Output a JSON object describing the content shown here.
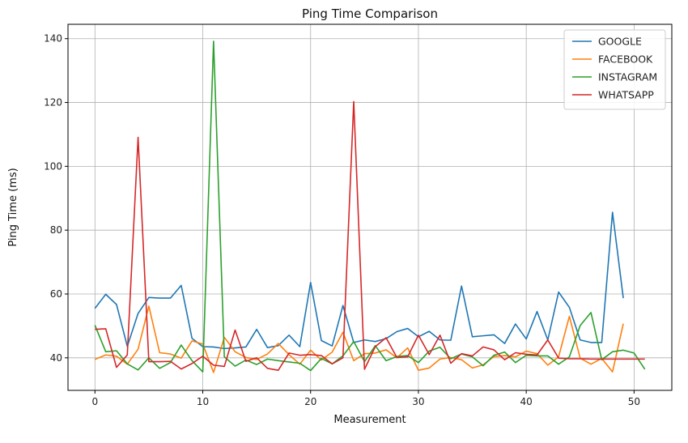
{
  "chart_data": {
    "type": "line",
    "title": "Ping Time Comparison",
    "xlabel": "Measurement",
    "ylabel": "Ping Time (ms)",
    "xlim": [
      -2.5,
      53.5
    ],
    "ylim": [
      29.8,
      144.5
    ],
    "xticks": [
      0,
      10,
      20,
      30,
      40,
      50
    ],
    "yticks": [
      40,
      60,
      80,
      100,
      120,
      140
    ],
    "grid": true,
    "legend_position": "top-right",
    "series": [
      {
        "name": "GOOGLE",
        "color": "#1f77b4",
        "values": [
          55.5,
          59.9,
          56.7,
          43.6,
          53.9,
          58.9,
          58.7,
          58.7,
          62.7,
          46.1,
          43.5,
          43.4,
          42.9,
          43.1,
          43.4,
          48.9,
          43.2,
          43.8,
          47.1,
          43.5,
          63.6,
          45.4,
          43.7,
          56.4,
          44.8,
          45.6,
          45.1,
          46.0,
          48.2,
          49.2,
          46.6,
          48.3,
          45.6,
          45.5,
          62.5,
          46.6,
          46.9,
          47.2,
          44.5,
          50.6,
          45.9,
          54.5,
          45.6,
          60.6,
          55.8,
          45.6,
          44.8,
          44.8,
          85.6,
          58.7
        ]
      },
      {
        "name": "FACEBOOK",
        "color": "#ff7f0e",
        "values": [
          39.5,
          40.9,
          40.5,
          38.0,
          42.7,
          56.2,
          41.6,
          41.2,
          39.9,
          45.3,
          44.3,
          35.4,
          46.4,
          41.9,
          40.1,
          39.5,
          41.2,
          44.5,
          41.0,
          38.0,
          42.4,
          39.3,
          41.8,
          48.0,
          39.1,
          41.3,
          41.5,
          42.5,
          40.0,
          43.1,
          36.1,
          36.8,
          39.6,
          40.1,
          39.4,
          36.8,
          37.8,
          40.4,
          40.7,
          40.3,
          42.1,
          41.3,
          37.7,
          40.3,
          53.0,
          39.9,
          38.0,
          39.8,
          35.6,
          50.7
        ]
      },
      {
        "name": "INSTAGRAM",
        "color": "#2ca02c",
        "values": [
          50.2,
          41.9,
          42.2,
          38.1,
          36.2,
          40.0,
          36.7,
          38.5,
          44.0,
          39.1,
          35.6,
          139.2,
          40.3,
          37.4,
          39.3,
          37.9,
          39.6,
          39.1,
          38.7,
          38.3,
          36.0,
          39.8,
          38.1,
          40.6,
          45.1,
          38.8,
          43.8,
          39.1,
          40.4,
          40.7,
          38.5,
          42.1,
          43.3,
          39.7,
          41.2,
          40.3,
          37.5,
          40.8,
          41.8,
          38.5,
          40.8,
          40.6,
          40.6,
          38.0,
          40.3,
          50.1,
          54.2,
          39.4,
          41.9,
          42.4,
          41.5,
          36.4
        ]
      },
      {
        "name": "WHATSAPP",
        "color": "#d62728",
        "values": [
          48.9,
          49.1,
          37.0,
          40.9,
          109.1,
          38.8,
          38.8,
          38.9,
          36.5,
          38.2,
          40.5,
          37.7,
          37.3,
          48.7,
          38.9,
          40.0,
          36.7,
          36.1,
          41.5,
          40.8,
          41.0,
          40.7,
          38.1,
          40.0,
          120.3,
          36.4,
          43.5,
          46.3,
          40.1,
          40.3,
          47.1,
          41.0,
          47.1,
          38.3,
          41.3,
          40.6,
          43.4,
          42.5,
          39.4,
          41.6,
          41.1,
          40.9,
          45.6,
          39.9,
          39.7,
          39.7,
          39.6,
          39.6,
          39.6,
          39.6,
          39.6,
          39.6
        ]
      }
    ]
  }
}
